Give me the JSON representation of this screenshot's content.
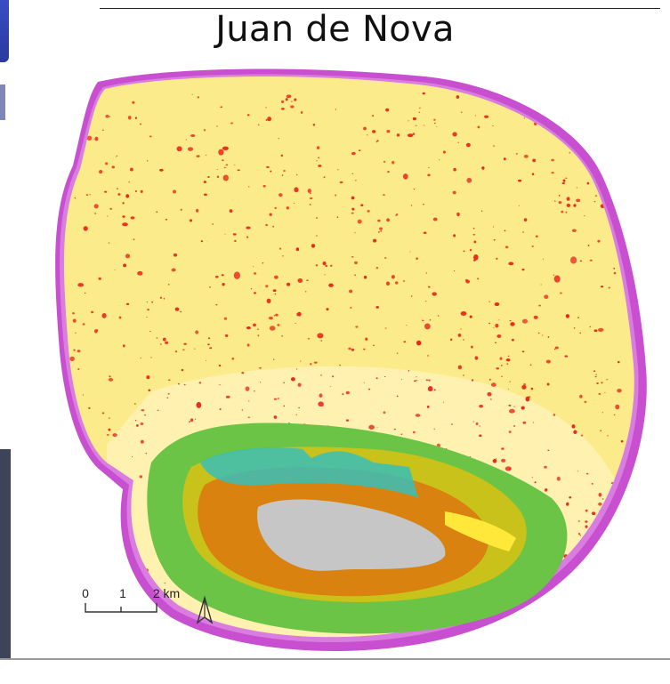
{
  "map": {
    "title": "Juan de Nova",
    "scale_bar": {
      "ticks": [
        "0",
        "1",
        "2 km"
      ]
    },
    "north_arrow_icon": "north-arrow-icon",
    "colors": {
      "sand_flat": "#fceb8a",
      "sand_light": "#fff3b8",
      "red_patches": "#e8291a",
      "reef_edge_magenta": "#c84fcf",
      "reef_edge_pink": "#d97de0",
      "vegetation_green": "#6bc446",
      "interior_orange": "#d9820f",
      "interior_olive": "#c9c21a",
      "interior_teal": "#38bfb9",
      "interior_grey": "#c6c6c6",
      "interior_yellow": "#ffe83a"
    }
  }
}
